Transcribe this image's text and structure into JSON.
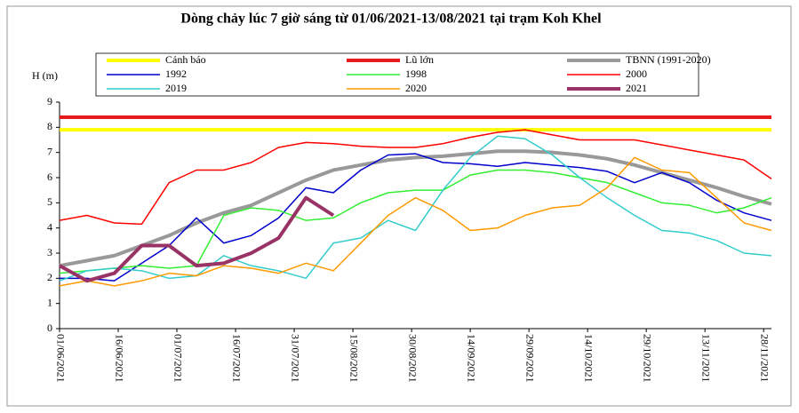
{
  "chart_data": {
    "type": "line",
    "title": "Dòng chảy lúc 7 giờ sáng từ 01/06/2021-13/08/2021 tại trạm Koh Khel",
    "ylabel": "H (m)",
    "x": [
      0,
      7,
      14,
      21,
      28,
      35,
      42,
      49,
      56,
      63,
      70,
      77,
      84,
      91,
      98,
      105,
      112,
      119,
      126,
      133,
      140,
      147,
      154,
      161,
      168,
      175,
      182
    ],
    "xlim": [
      0,
      182
    ],
    "xticks": [
      {
        "value": 0,
        "label": "01/06/2021"
      },
      {
        "value": 15,
        "label": "16/06/2021"
      },
      {
        "value": 30,
        "label": "01/07/2021"
      },
      {
        "value": 45,
        "label": "16/07/2021"
      },
      {
        "value": 60,
        "label": "31/07/2021"
      },
      {
        "value": 75,
        "label": "15/08/2021"
      },
      {
        "value": 90,
        "label": "30/08/2021"
      },
      {
        "value": 105,
        "label": "14/09/2021"
      },
      {
        "value": 120,
        "label": "29/09/2021"
      },
      {
        "value": 135,
        "label": "14/10/2021"
      },
      {
        "value": 150,
        "label": "29/10/2021"
      },
      {
        "value": 165,
        "label": "13/11/2021"
      },
      {
        "value": 180,
        "label": "28/11/2021"
      }
    ],
    "ylim": [
      0,
      9
    ],
    "yticks": [
      0,
      1,
      2,
      3,
      4,
      5,
      6,
      7,
      8,
      9
    ],
    "grid": false,
    "series": [
      {
        "name": "Cảnh báo",
        "color": "#ffff00",
        "width": 4,
        "values": [
          7.9,
          7.9,
          7.9,
          7.9,
          7.9,
          7.9,
          7.9,
          7.9,
          7.9,
          7.9,
          7.9,
          7.9,
          7.9,
          7.9,
          7.9,
          7.9,
          7.9,
          7.9,
          7.9,
          7.9,
          7.9,
          7.9,
          7.9,
          7.9,
          7.9,
          7.9,
          7.9
        ]
      },
      {
        "name": "Lũ lớn",
        "color": "#e8191a",
        "width": 4,
        "values": [
          8.4,
          8.4,
          8.4,
          8.4,
          8.4,
          8.4,
          8.4,
          8.4,
          8.4,
          8.4,
          8.4,
          8.4,
          8.4,
          8.4,
          8.4,
          8.4,
          8.4,
          8.4,
          8.4,
          8.4,
          8.4,
          8.4,
          8.4,
          8.4,
          8.4,
          8.4,
          8.4
        ]
      },
      {
        "name": "TBNN (1991-2020)",
        "color": "#999999",
        "width": 4,
        "values": [
          2.5,
          2.7,
          2.9,
          3.3,
          3.7,
          4.2,
          4.6,
          4.9,
          5.4,
          5.9,
          6.3,
          6.5,
          6.7,
          6.8,
          6.85,
          6.95,
          7.05,
          7.05,
          7.0,
          6.9,
          6.75,
          6.5,
          6.2,
          5.9,
          5.6,
          5.25,
          4.95
        ]
      },
      {
        "name": "1992",
        "color": "#0000cc",
        "width": 1.5,
        "values": [
          2.0,
          2.0,
          1.9,
          2.6,
          3.3,
          4.4,
          3.4,
          3.7,
          4.4,
          5.6,
          5.4,
          6.3,
          6.9,
          6.95,
          6.6,
          6.55,
          6.45,
          6.6,
          6.5,
          6.4,
          6.25,
          5.8,
          6.2,
          5.8,
          5.1,
          4.6,
          4.3
        ]
      },
      {
        "name": "1998",
        "color": "#33ee33",
        "width": 1.5,
        "values": [
          2.2,
          2.3,
          2.4,
          2.5,
          2.4,
          2.5,
          4.5,
          4.8,
          4.7,
          4.3,
          4.4,
          5.0,
          5.4,
          5.5,
          5.5,
          6.1,
          6.3,
          6.3,
          6.2,
          6.0,
          5.8,
          5.4,
          5.0,
          4.9,
          4.6,
          4.8,
          5.2
        ]
      },
      {
        "name": "2000",
        "color": "#ff0000",
        "width": 1.5,
        "values": [
          4.3,
          4.5,
          4.2,
          4.15,
          5.8,
          6.3,
          6.3,
          6.6,
          7.2,
          7.4,
          7.35,
          7.25,
          7.2,
          7.2,
          7.35,
          7.6,
          7.8,
          7.9,
          7.7,
          7.5,
          7.5,
          7.5,
          7.3,
          7.1,
          6.9,
          6.7,
          5.95
        ]
      },
      {
        "name": "2019",
        "color": "#33cccc",
        "width": 1.5,
        "values": [
          1.9,
          2.3,
          2.4,
          2.3,
          2.0,
          2.1,
          2.9,
          2.5,
          2.3,
          2.0,
          3.4,
          3.6,
          4.3,
          3.9,
          5.5,
          6.8,
          7.65,
          7.55,
          6.9,
          6.0,
          5.2,
          4.5,
          3.9,
          3.8,
          3.5,
          3.0,
          2.9
        ]
      },
      {
        "name": "2020",
        "color": "#ff9900",
        "width": 1.5,
        "values": [
          1.7,
          1.9,
          1.7,
          1.9,
          2.2,
          2.1,
          2.5,
          2.4,
          2.2,
          2.6,
          2.3,
          3.4,
          4.5,
          5.2,
          4.7,
          3.9,
          4.0,
          4.5,
          4.8,
          4.9,
          5.6,
          6.8,
          6.3,
          6.2,
          5.2,
          4.2,
          3.9
        ]
      },
      {
        "name": "2021",
        "color": "#993366",
        "width": 4,
        "values": [
          2.5,
          1.9,
          2.2,
          3.3,
          3.3,
          2.5,
          2.6,
          3.0,
          3.6,
          5.2,
          4.5,
          null,
          null,
          null,
          null,
          null,
          null,
          null,
          null,
          null,
          null,
          null,
          null,
          null,
          null,
          null,
          null
        ]
      }
    ]
  }
}
